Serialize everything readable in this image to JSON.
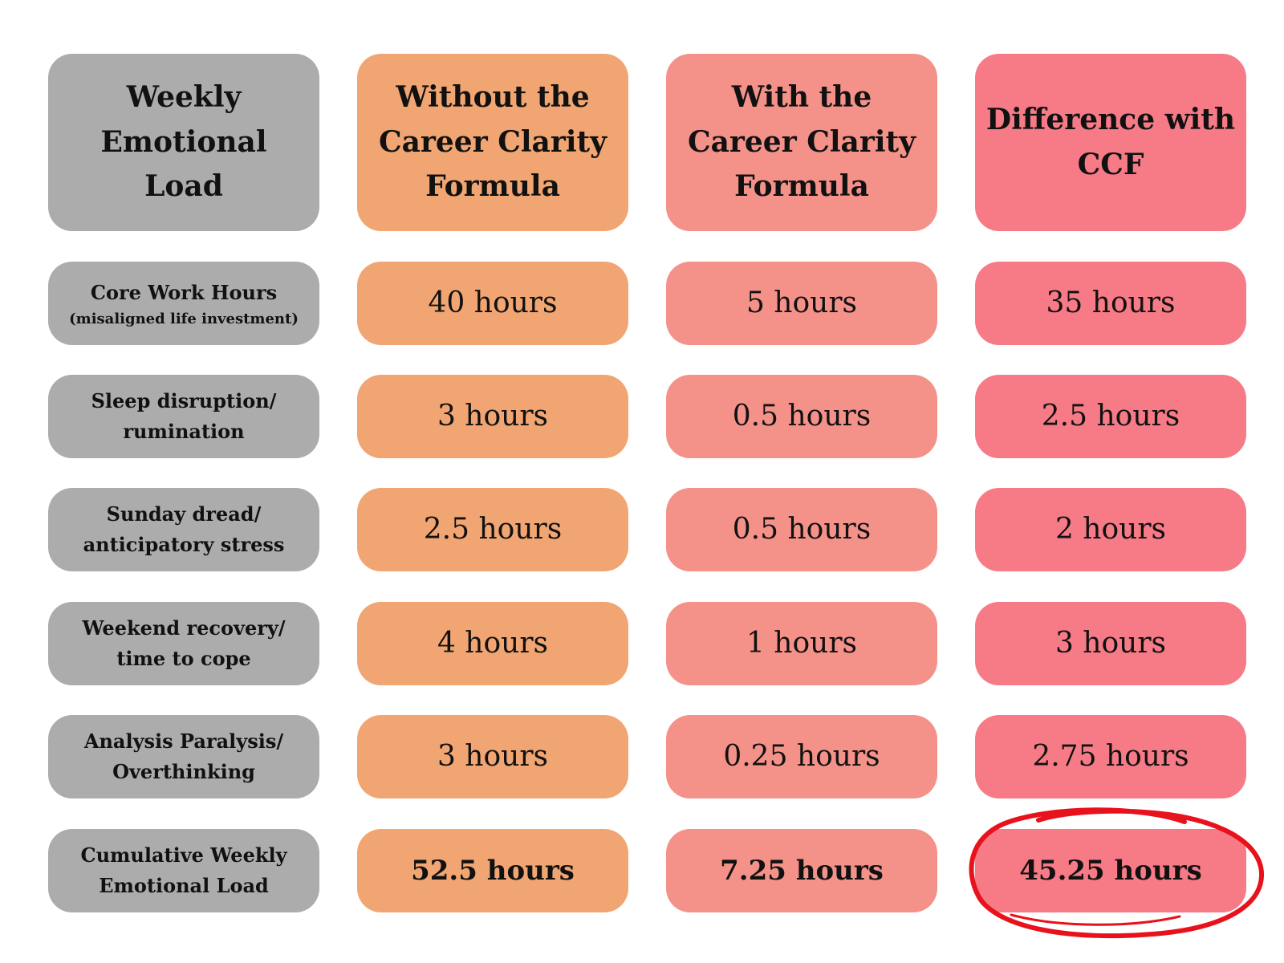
{
  "accent_colors": {
    "label_column": "#acacac",
    "without_column": "#f1a572",
    "with_column": "#f4928a",
    "difference_column": "#f67b86",
    "highlight_circle": "#e8121c"
  },
  "headers": [
    "Weekly Emotional Load",
    "Without the Career Clarity Formula",
    "With the Career Clarity Formula",
    "Difference with CCF"
  ],
  "rows": [
    {
      "label": "Core Work Hours",
      "sublabel": "(misaligned life investment)",
      "without": "40 hours",
      "with": "5 hours",
      "difference": "35 hours"
    },
    {
      "label": "Sleep disruption/ rumination",
      "without": "3 hours",
      "with": "0.5 hours",
      "difference": "2.5 hours"
    },
    {
      "label": "Sunday dread/ anticipatory stress",
      "without": "2.5 hours",
      "with": "0.5 hours",
      "difference": "2 hours"
    },
    {
      "label": "Weekend recovery/ time to cope",
      "without": "4 hours",
      "with": "1 hours",
      "difference": "3 hours"
    },
    {
      "label": "Analysis Paralysis/ Overthinking",
      "without": "3 hours",
      "with": "0.25 hours",
      "difference": "2.75 hours"
    },
    {
      "label": "Cumulative Weekly Emotional Load",
      "without": "52.5 hours",
      "with": "7.25 hours",
      "difference": "45.25 hours"
    }
  ]
}
